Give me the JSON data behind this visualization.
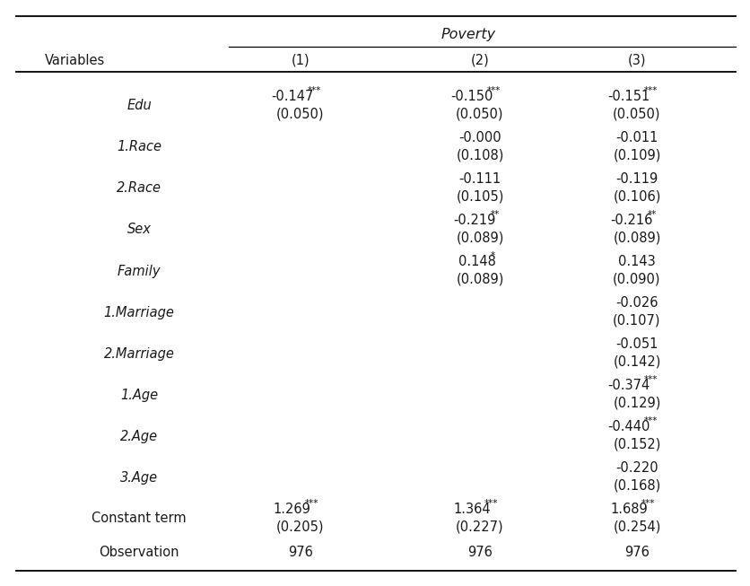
{
  "title": "Poverty",
  "col_headers": [
    "(1)",
    "(2)",
    "(3)"
  ],
  "row_var_label": "Variables",
  "rows": [
    {
      "var": "Edu",
      "italic": true,
      "values": [
        {
          "coef": "-0.147",
          "stars": "***",
          "se": "(0.050)"
        },
        {
          "coef": "-0.150",
          "stars": "***",
          "se": "(0.050)"
        },
        {
          "coef": "-0.151",
          "stars": "***",
          "se": "(0.050)"
        }
      ]
    },
    {
      "var": "1.Race",
      "italic": true,
      "values": [
        {
          "coef": "",
          "stars": "",
          "se": ""
        },
        {
          "coef": "-0.000",
          "stars": "",
          "se": "(0.108)"
        },
        {
          "coef": "-0.011",
          "stars": "",
          "se": "(0.109)"
        }
      ]
    },
    {
      "var": "2.Race",
      "italic": true,
      "values": [
        {
          "coef": "",
          "stars": "",
          "se": ""
        },
        {
          "coef": "-0.111",
          "stars": "",
          "se": "(0.105)"
        },
        {
          "coef": "-0.119",
          "stars": "",
          "se": "(0.106)"
        }
      ]
    },
    {
      "var": "Sex",
      "italic": true,
      "values": [
        {
          "coef": "",
          "stars": "",
          "se": ""
        },
        {
          "coef": "-0.219",
          "stars": "**",
          "se": "(0.089)"
        },
        {
          "coef": "-0.216",
          "stars": "**",
          "se": "(0.089)"
        }
      ]
    },
    {
      "var": "Family",
      "italic": true,
      "values": [
        {
          "coef": "",
          "stars": "",
          "se": ""
        },
        {
          "coef": "0.148",
          "stars": "*",
          "se": "(0.089)"
        },
        {
          "coef": "0.143",
          "stars": "",
          "se": "(0.090)"
        }
      ]
    },
    {
      "var": "1.Marriage",
      "italic": true,
      "values": [
        {
          "coef": "",
          "stars": "",
          "se": ""
        },
        {
          "coef": "",
          "stars": "",
          "se": ""
        },
        {
          "coef": "-0.026",
          "stars": "",
          "se": "(0.107)"
        }
      ]
    },
    {
      "var": "2.Marriage",
      "italic": true,
      "values": [
        {
          "coef": "",
          "stars": "",
          "se": ""
        },
        {
          "coef": "",
          "stars": "",
          "se": ""
        },
        {
          "coef": "-0.051",
          "stars": "",
          "se": "(0.142)"
        }
      ]
    },
    {
      "var": "1.Age",
      "italic": true,
      "values": [
        {
          "coef": "",
          "stars": "",
          "se": ""
        },
        {
          "coef": "",
          "stars": "",
          "se": ""
        },
        {
          "coef": "-0.374",
          "stars": "***",
          "se": "(0.129)"
        }
      ]
    },
    {
      "var": "2.Age",
      "italic": true,
      "values": [
        {
          "coef": "",
          "stars": "",
          "se": ""
        },
        {
          "coef": "",
          "stars": "",
          "se": ""
        },
        {
          "coef": "-0.440",
          "stars": "***",
          "se": "(0.152)"
        }
      ]
    },
    {
      "var": "3.Age",
      "italic": true,
      "values": [
        {
          "coef": "",
          "stars": "",
          "se": ""
        },
        {
          "coef": "",
          "stars": "",
          "se": ""
        },
        {
          "coef": "-0.220",
          "stars": "",
          "se": "(0.168)"
        }
      ]
    },
    {
      "var": "Constant term",
      "italic": false,
      "values": [
        {
          "coef": "1.269",
          "stars": "***",
          "se": "(0.205)"
        },
        {
          "coef": "1.364",
          "stars": "***",
          "se": "(0.227)"
        },
        {
          "coef": "1.689",
          "stars": "***",
          "se": "(0.254)"
        }
      ]
    },
    {
      "var": "Observation",
      "italic": false,
      "is_single": true,
      "values": [
        {
          "coef": "976",
          "stars": "",
          "se": ""
        },
        {
          "coef": "976",
          "stars": "",
          "se": ""
        },
        {
          "coef": "976",
          "stars": "",
          "se": ""
        }
      ]
    }
  ],
  "bg_color": "#ffffff",
  "text_color": "#1a1a1a",
  "font_size": 10.5,
  "star_font_size": 7.5
}
